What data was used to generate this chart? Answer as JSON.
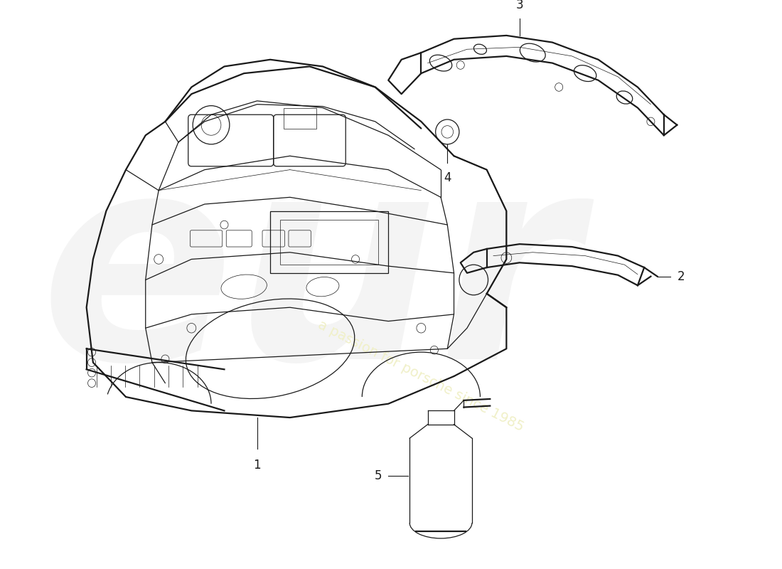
{
  "background_color": "#ffffff",
  "line_color": "#1a1a1a",
  "wm_color1": "#e8e8e8",
  "wm_color2": "#f0f0c8",
  "lw_outer": 1.6,
  "lw_inner": 0.9,
  "lw_detail": 0.5,
  "label_fontsize": 12,
  "figsize": [
    11.0,
    8.0
  ],
  "dpi": 100
}
